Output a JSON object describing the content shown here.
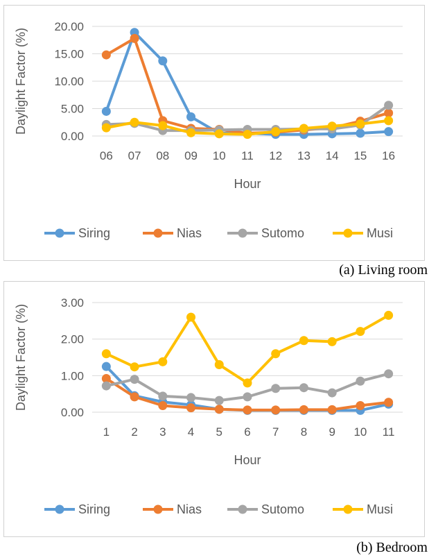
{
  "chart_data": [
    {
      "type": "line",
      "caption": "(a)  Living room",
      "xlabel": "Hour",
      "ylabel": "Daylight Factor (%)",
      "categories": [
        "06",
        "07",
        "08",
        "09",
        "10",
        "11",
        "12",
        "13",
        "14",
        "15",
        "16"
      ],
      "yticks": [
        "0.00",
        "5.00",
        "10.00",
        "15.00",
        "20.00"
      ],
      "ylim": [
        0,
        20
      ],
      "grid": true,
      "legend": "bottom",
      "series": [
        {
          "name": "Siring",
          "color": "#5b9bd5",
          "values": [
            4.5,
            18.9,
            13.7,
            3.5,
            0.5,
            0.5,
            0.3,
            0.3,
            0.4,
            0.5,
            0.8
          ]
        },
        {
          "name": "Nias",
          "color": "#ed7d31",
          "values": [
            14.8,
            17.8,
            2.8,
            1.4,
            1.2,
            0.5,
            0.7,
            1.1,
            1.5,
            2.7,
            4.2
          ]
        },
        {
          "name": "Sutomo",
          "color": "#a5a5a5",
          "values": [
            2.1,
            2.3,
            1.0,
            1.0,
            1.1,
            1.2,
            1.2,
            1.3,
            1.3,
            2.0,
            5.6
          ]
        },
        {
          "name": "Musi",
          "color": "#ffc000",
          "values": [
            1.5,
            2.5,
            1.9,
            0.6,
            0.4,
            0.3,
            0.8,
            1.4,
            1.8,
            2.2,
            2.8
          ]
        }
      ]
    },
    {
      "type": "line",
      "caption": "(b)  Bedroom",
      "xlabel": "Hour",
      "ylabel": "Daylight Factor (%)",
      "categories": [
        "1",
        "2",
        "3",
        "4",
        "5",
        "6",
        "7",
        "8",
        "9",
        "10",
        "11"
      ],
      "yticks": [
        "0.00",
        "1.00",
        "2.00",
        "3.00"
      ],
      "ylim": [
        0,
        3
      ],
      "grid": true,
      "legend": "bottom",
      "series": [
        {
          "name": "Siring",
          "color": "#5b9bd5",
          "values": [
            1.25,
            0.45,
            0.28,
            0.2,
            0.08,
            0.05,
            0.05,
            0.05,
            0.05,
            0.05,
            0.22
          ]
        },
        {
          "name": "Nias",
          "color": "#ed7d31",
          "values": [
            0.92,
            0.42,
            0.18,
            0.12,
            0.08,
            0.06,
            0.06,
            0.07,
            0.07,
            0.18,
            0.27
          ]
        },
        {
          "name": "Sutomo",
          "color": "#a5a5a5",
          "values": [
            0.72,
            0.9,
            0.44,
            0.4,
            0.32,
            0.42,
            0.65,
            0.67,
            0.53,
            0.85,
            1.05
          ]
        },
        {
          "name": "Musi",
          "color": "#ffc000",
          "values": [
            1.6,
            1.24,
            1.38,
            2.6,
            1.3,
            0.8,
            1.6,
            1.96,
            1.93,
            2.21,
            2.65
          ]
        }
      ]
    }
  ]
}
